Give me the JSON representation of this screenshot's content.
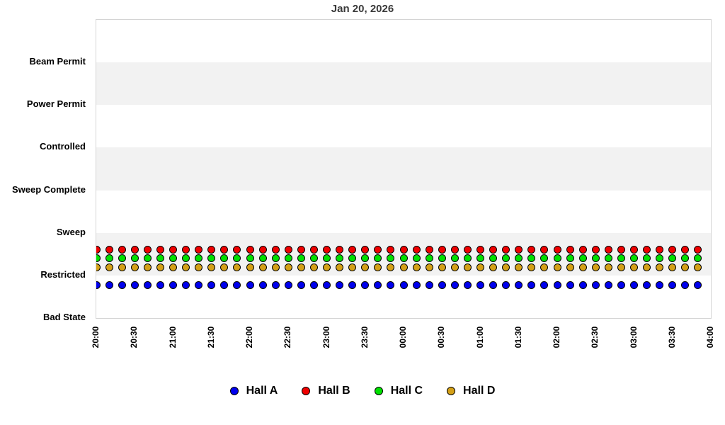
{
  "header": {
    "title": "Jan 20, 2026"
  },
  "chart_data": {
    "type": "scatter",
    "title": "Jan 20, 2026",
    "x_axis": {
      "start": "20:00",
      "end": "04:00",
      "range_minutes": 480,
      "tick_interval_minutes": 30,
      "tick_labels": [
        "20:00",
        "20:30",
        "21:00",
        "21:30",
        "22:00",
        "22:30",
        "23:00",
        "23:30",
        "00:00",
        "00:30",
        "01:00",
        "01:30",
        "02:00",
        "02:30",
        "03:00",
        "03:30",
        "04:00"
      ]
    },
    "y_axis": {
      "categories_bottom_to_top": [
        "Bad State",
        "Restricted",
        "Sweep",
        "Sweep Complete",
        "Controlled",
        "Power Permit",
        "Beam Permit"
      ],
      "levels_total": 7
    },
    "point_interval_minutes": 10,
    "point_times": [
      "20:00",
      "20:10",
      "20:20",
      "20:30",
      "20:40",
      "20:50",
      "21:00",
      "21:10",
      "21:20",
      "21:30",
      "21:40",
      "21:50",
      "22:00",
      "22:10",
      "22:20",
      "22:30",
      "22:40",
      "22:50",
      "23:00",
      "23:10",
      "23:20",
      "23:30",
      "23:40",
      "23:50",
      "00:00",
      "00:10",
      "00:20",
      "00:30",
      "00:40",
      "00:50",
      "01:00",
      "01:10",
      "01:20",
      "01:30",
      "01:40",
      "01:50",
      "02:00",
      "02:10",
      "02:20",
      "02:30",
      "02:40",
      "02:50",
      "03:00",
      "03:10",
      "03:20",
      "03:30",
      "03:40",
      "03:50"
    ],
    "series": [
      {
        "name": "Hall A",
        "color": "#0000ee",
        "state_all_points": "Restricted",
        "plot_offset_levels": -0.22
      },
      {
        "name": "Hall B",
        "color": "#ee0000",
        "state_all_points": "Restricted",
        "plot_offset_levels": 0.6
      },
      {
        "name": "Hall C",
        "color": "#00e000",
        "state_all_points": "Restricted",
        "plot_offset_levels": 0.4
      },
      {
        "name": "Hall D",
        "color": "#d4a017",
        "state_all_points": "Restricted",
        "plot_offset_levels": 0.19
      }
    ],
    "style": {
      "band_color": "#f2f2f2",
      "plot_border_color": "#d4d4d4",
      "alternating_horizontal_bands": true,
      "legend_position": "bottom"
    }
  },
  "legend": {
    "items": [
      {
        "label": "Hall A",
        "color": "#0000ee"
      },
      {
        "label": "Hall B",
        "color": "#ee0000"
      },
      {
        "label": "Hall C",
        "color": "#00e000"
      },
      {
        "label": "Hall D",
        "color": "#d4a017"
      }
    ]
  }
}
